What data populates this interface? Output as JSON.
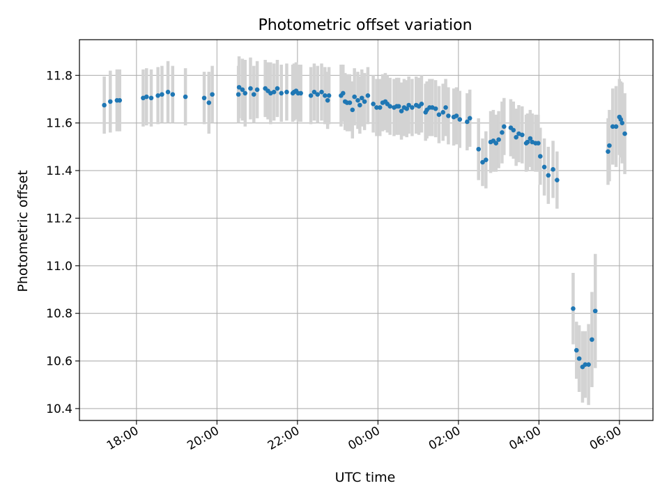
{
  "chart_data": {
    "type": "scatter",
    "title": "Photometric offset variation",
    "xlabel": "UTC time",
    "ylabel": "Photometric offset",
    "grid": true,
    "x_unit": "UTC time (hh:mm) over one night, times past midnight written 24:xx",
    "xlim": [
      "16:35",
      "30:50"
    ],
    "ylim": [
      10.35,
      11.95
    ],
    "x_ticks": [
      "18:00",
      "20:00",
      "22:00",
      "00:00",
      "02:00",
      "04:00",
      "06:00"
    ],
    "y_ticks": [
      "10.4",
      "10.6",
      "10.8",
      "11.0",
      "11.2",
      "11.4",
      "11.6",
      "11.8"
    ],
    "colors": {
      "points": "#1f77b4",
      "error_bars": "#d3d3d3",
      "grid": "#b0b0b0"
    },
    "series": [
      {
        "points": [
          {
            "x": "17:12",
            "y": 11.675,
            "err": 0.12
          },
          {
            "x": "17:21",
            "y": 11.69,
            "err": 0.13
          },
          {
            "x": "17:31",
            "y": 11.695,
            "err": 0.13
          },
          {
            "x": "17:35",
            "y": 11.695,
            "err": 0.13
          },
          {
            "x": "18:10",
            "y": 11.705,
            "err": 0.12
          },
          {
            "x": "18:15",
            "y": 11.71,
            "err": 0.12
          },
          {
            "x": "18:22",
            "y": 11.705,
            "err": 0.12
          },
          {
            "x": "18:32",
            "y": 11.715,
            "err": 0.12
          },
          {
            "x": "18:38",
            "y": 11.72,
            "err": 0.12
          },
          {
            "x": "18:47",
            "y": 11.73,
            "err": 0.13
          },
          {
            "x": "18:54",
            "y": 11.72,
            "err": 0.12
          },
          {
            "x": "19:13",
            "y": 11.71,
            "err": 0.12
          },
          {
            "x": "19:41",
            "y": 11.705,
            "err": 0.11
          },
          {
            "x": "19:48",
            "y": 11.685,
            "err": 0.13
          },
          {
            "x": "19:53",
            "y": 11.72,
            "err": 0.12
          },
          {
            "x": "20:32",
            "y": 11.72,
            "err": 0.12
          },
          {
            "x": "20:33",
            "y": 11.75,
            "err": 0.13
          },
          {
            "x": "20:38",
            "y": 11.74,
            "err": 0.13
          },
          {
            "x": "20:42",
            "y": 11.725,
            "err": 0.14
          },
          {
            "x": "20:50",
            "y": 11.745,
            "err": 0.13
          },
          {
            "x": "20:55",
            "y": 11.72,
            "err": 0.12
          },
          {
            "x": "21:00",
            "y": 11.74,
            "err": 0.12
          },
          {
            "x": "21:12",
            "y": 11.745,
            "err": 0.12
          },
          {
            "x": "21:16",
            "y": 11.735,
            "err": 0.12
          },
          {
            "x": "21:20",
            "y": 11.725,
            "err": 0.13
          },
          {
            "x": "21:25",
            "y": 11.73,
            "err": 0.12
          },
          {
            "x": "21:30",
            "y": 11.745,
            "err": 0.12
          },
          {
            "x": "21:36",
            "y": 11.725,
            "err": 0.12
          },
          {
            "x": "21:44",
            "y": 11.73,
            "err": 0.12
          },
          {
            "x": "21:53",
            "y": 11.725,
            "err": 0.12
          },
          {
            "x": "21:55",
            "y": 11.73,
            "err": 0.12
          },
          {
            "x": "21:58",
            "y": 11.735,
            "err": 0.12
          },
          {
            "x": "22:01",
            "y": 11.725,
            "err": 0.12
          },
          {
            "x": "22:05",
            "y": 11.725,
            "err": 0.12
          },
          {
            "x": "22:20",
            "y": 11.715,
            "err": 0.12
          },
          {
            "x": "22:25",
            "y": 11.73,
            "err": 0.12
          },
          {
            "x": "22:30",
            "y": 11.72,
            "err": 0.12
          },
          {
            "x": "22:36",
            "y": 11.73,
            "err": 0.12
          },
          {
            "x": "22:41",
            "y": 11.715,
            "err": 0.12
          },
          {
            "x": "22:45",
            "y": 11.695,
            "err": 0.12
          },
          {
            "x": "22:47",
            "y": 11.715,
            "err": 0.12
          },
          {
            "x": "23:05",
            "y": 11.715,
            "err": 0.13
          },
          {
            "x": "23:08",
            "y": 11.725,
            "err": 0.12
          },
          {
            "x": "23:11",
            "y": 11.69,
            "err": 0.12
          },
          {
            "x": "23:14",
            "y": 11.685,
            "err": 0.12
          },
          {
            "x": "23:18",
            "y": 11.685,
            "err": 0.12
          },
          {
            "x": "23:22",
            "y": 11.655,
            "err": 0.12
          },
          {
            "x": "23:25",
            "y": 11.71,
            "err": 0.12
          },
          {
            "x": "23:30",
            "y": 11.695,
            "err": 0.12
          },
          {
            "x": "23:33",
            "y": 11.675,
            "err": 0.12
          },
          {
            "x": "23:36",
            "y": 11.705,
            "err": 0.12
          },
          {
            "x": "23:40",
            "y": 11.69,
            "err": 0.12
          },
          {
            "x": "23:45",
            "y": 11.715,
            "err": 0.12
          },
          {
            "x": "23:53",
            "y": 11.68,
            "err": 0.12
          },
          {
            "x": "23:58",
            "y": 11.665,
            "err": 0.12
          },
          {
            "x": "00:03",
            "y": 11.665,
            "err": 0.12
          },
          {
            "x": "00:07",
            "y": 11.685,
            "err": 0.12
          },
          {
            "x": "00:11",
            "y": 11.69,
            "err": 0.12
          },
          {
            "x": "00:14",
            "y": 11.68,
            "err": 0.12
          },
          {
            "x": "00:18",
            "y": 11.67,
            "err": 0.12
          },
          {
            "x": "00:24",
            "y": 11.665,
            "err": 0.12
          },
          {
            "x": "00:28",
            "y": 11.67,
            "err": 0.12
          },
          {
            "x": "00:31",
            "y": 11.67,
            "err": 0.12
          },
          {
            "x": "00:35",
            "y": 11.65,
            "err": 0.12
          },
          {
            "x": "00:39",
            "y": 11.665,
            "err": 0.12
          },
          {
            "x": "00:43",
            "y": 11.66,
            "err": 0.12
          },
          {
            "x": "00:46",
            "y": 11.675,
            "err": 0.12
          },
          {
            "x": "00:51",
            "y": 11.665,
            "err": 0.12
          },
          {
            "x": "00:57",
            "y": 11.675,
            "err": 0.12
          },
          {
            "x": "01:01",
            "y": 11.67,
            "err": 0.12
          },
          {
            "x": "01:05",
            "y": 11.68,
            "err": 0.12
          },
          {
            "x": "01:11",
            "y": 11.645,
            "err": 0.12
          },
          {
            "x": "01:13",
            "y": 11.655,
            "err": 0.12
          },
          {
            "x": "01:17",
            "y": 11.665,
            "err": 0.12
          },
          {
            "x": "01:21",
            "y": 11.665,
            "err": 0.12
          },
          {
            "x": "01:26",
            "y": 11.66,
            "err": 0.12
          },
          {
            "x": "01:31",
            "y": 11.635,
            "err": 0.12
          },
          {
            "x": "01:37",
            "y": 11.645,
            "err": 0.12
          },
          {
            "x": "01:41",
            "y": 11.665,
            "err": 0.12
          },
          {
            "x": "01:45",
            "y": 11.63,
            "err": 0.12
          },
          {
            "x": "01:53",
            "y": 11.625,
            "err": 0.12
          },
          {
            "x": "01:57",
            "y": 11.63,
            "err": 0.12
          },
          {
            "x": "02:02",
            "y": 11.615,
            "err": 0.12
          },
          {
            "x": "02:13",
            "y": 11.605,
            "err": 0.12
          },
          {
            "x": "02:17",
            "y": 11.62,
            "err": 0.12
          },
          {
            "x": "02:30",
            "y": 11.49,
            "err": 0.13
          },
          {
            "x": "02:36",
            "y": 11.435,
            "err": 0.1
          },
          {
            "x": "02:41",
            "y": 11.445,
            "err": 0.12
          },
          {
            "x": "02:48",
            "y": 11.52,
            "err": 0.13
          },
          {
            "x": "02:52",
            "y": 11.525,
            "err": 0.13
          },
          {
            "x": "02:56",
            "y": 11.515,
            "err": 0.12
          },
          {
            "x": "03:00",
            "y": 11.53,
            "err": 0.12
          },
          {
            "x": "03:05",
            "y": 11.56,
            "err": 0.13
          },
          {
            "x": "03:08",
            "y": 11.585,
            "err": 0.12
          },
          {
            "x": "03:18",
            "y": 11.58,
            "err": 0.12
          },
          {
            "x": "03:22",
            "y": 11.57,
            "err": 0.12
          },
          {
            "x": "03:26",
            "y": 11.54,
            "err": 0.12
          },
          {
            "x": "03:30",
            "y": 11.555,
            "err": 0.12
          },
          {
            "x": "03:35",
            "y": 11.55,
            "err": 0.12
          },
          {
            "x": "03:41",
            "y": 11.515,
            "err": 0.12
          },
          {
            "x": "03:43",
            "y": 11.52,
            "err": 0.12
          },
          {
            "x": "03:47",
            "y": 11.535,
            "err": 0.12
          },
          {
            "x": "03:50",
            "y": 11.52,
            "err": 0.12
          },
          {
            "x": "03:55",
            "y": 11.515,
            "err": 0.12
          },
          {
            "x": "03:59",
            "y": 11.515,
            "err": 0.12
          },
          {
            "x": "04:02",
            "y": 11.46,
            "err": 0.12
          },
          {
            "x": "04:08",
            "y": 11.415,
            "err": 0.12
          },
          {
            "x": "04:14",
            "y": 11.38,
            "err": 0.12
          },
          {
            "x": "04:21",
            "y": 11.405,
            "err": 0.12
          },
          {
            "x": "04:27",
            "y": 11.36,
            "err": 0.12
          },
          {
            "x": "04:51",
            "y": 10.82,
            "err": 0.15
          },
          {
            "x": "04:56",
            "y": 10.645,
            "err": 0.12
          },
          {
            "x": "05:00",
            "y": 10.61,
            "err": 0.14
          },
          {
            "x": "05:05",
            "y": 10.575,
            "err": 0.15
          },
          {
            "x": "05:09",
            "y": 10.585,
            "err": 0.14
          },
          {
            "x": "05:14",
            "y": 10.585,
            "err": 0.17
          },
          {
            "x": "05:19",
            "y": 10.69,
            "err": 0.2
          },
          {
            "x": "05:24",
            "y": 10.81,
            "err": 0.24
          },
          {
            "x": "05:43",
            "y": 11.48,
            "err": 0.14
          },
          {
            "x": "05:45",
            "y": 11.505,
            "err": 0.15
          },
          {
            "x": "05:50",
            "y": 11.585,
            "err": 0.16
          },
          {
            "x": "05:55",
            "y": 11.585,
            "err": 0.17
          },
          {
            "x": "06:00",
            "y": 11.625,
            "err": 0.16
          },
          {
            "x": "06:04",
            "y": 11.6,
            "err": 0.17
          },
          {
            "x": "06:08",
            "y": 11.555,
            "err": 0.17
          },
          {
            "x": "06:02",
            "y": 11.615,
            "err": 0.16
          }
        ]
      }
    ]
  }
}
